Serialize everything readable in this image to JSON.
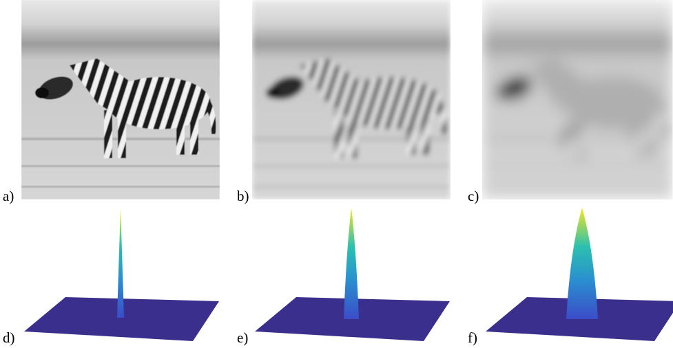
{
  "panels": [
    {
      "label": "a)"
    },
    {
      "label": "b)"
    },
    {
      "label": "c)"
    },
    {
      "label": "d)"
    },
    {
      "label": "e)"
    },
    {
      "label": "f)"
    }
  ]
}
